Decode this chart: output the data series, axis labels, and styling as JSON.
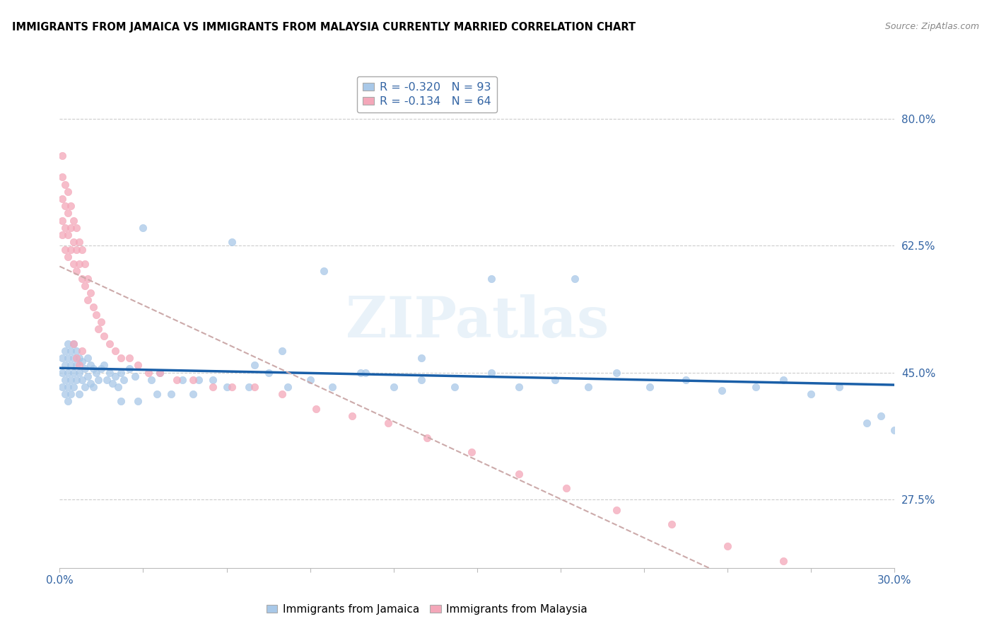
{
  "title": "IMMIGRANTS FROM JAMAICA VS IMMIGRANTS FROM MALAYSIA CURRENTLY MARRIED CORRELATION CHART",
  "source": "Source: ZipAtlas.com",
  "ylabel_ticks": [
    0.275,
    0.45,
    0.625,
    0.8
  ],
  "ylabel_labels": [
    "27.5%",
    "45.0%",
    "62.5%",
    "80.0%"
  ],
  "xmin": 0.0,
  "xmax": 0.3,
  "ymin": 0.18,
  "ymax": 0.86,
  "jamaica_color": "#a8c8e8",
  "malaysia_color": "#f4a7b9",
  "jamaica_line_color": "#1a5fa8",
  "malaysia_line_color": "#e06080",
  "malaysia_dash_color": "#d0a0b0",
  "jamaica_R": -0.32,
  "jamaica_N": 93,
  "malaysia_R": -0.134,
  "malaysia_N": 64,
  "watermark": "ZIPatlas",
  "legend_label_1": "Immigrants from Jamaica",
  "legend_label_2": "Immigrants from Malaysia",
  "jamaica_scatter_x": [
    0.001,
    0.001,
    0.001,
    0.002,
    0.002,
    0.002,
    0.002,
    0.003,
    0.003,
    0.003,
    0.003,
    0.003,
    0.004,
    0.004,
    0.004,
    0.004,
    0.005,
    0.005,
    0.005,
    0.005,
    0.006,
    0.006,
    0.006,
    0.007,
    0.007,
    0.007,
    0.008,
    0.008,
    0.009,
    0.009,
    0.01,
    0.01,
    0.011,
    0.011,
    0.012,
    0.012,
    0.013,
    0.014,
    0.015,
    0.016,
    0.017,
    0.018,
    0.019,
    0.02,
    0.021,
    0.022,
    0.023,
    0.025,
    0.027,
    0.03,
    0.033,
    0.036,
    0.04,
    0.044,
    0.048,
    0.055,
    0.062,
    0.068,
    0.075,
    0.082,
    0.09,
    0.098,
    0.108,
    0.12,
    0.13,
    0.142,
    0.155,
    0.165,
    0.178,
    0.19,
    0.2,
    0.212,
    0.225,
    0.238,
    0.25,
    0.26,
    0.27,
    0.28,
    0.185,
    0.155,
    0.095,
    0.11,
    0.13,
    0.05,
    0.06,
    0.07,
    0.08,
    0.035,
    0.028,
    0.022,
    0.29,
    0.295,
    0.3
  ],
  "jamaica_scatter_y": [
    0.47,
    0.45,
    0.43,
    0.48,
    0.46,
    0.44,
    0.42,
    0.49,
    0.47,
    0.45,
    0.43,
    0.41,
    0.48,
    0.46,
    0.44,
    0.42,
    0.47,
    0.45,
    0.43,
    0.49,
    0.46,
    0.44,
    0.48,
    0.47,
    0.45,
    0.42,
    0.465,
    0.44,
    0.455,
    0.43,
    0.47,
    0.445,
    0.46,
    0.435,
    0.455,
    0.43,
    0.45,
    0.44,
    0.455,
    0.46,
    0.44,
    0.45,
    0.435,
    0.445,
    0.43,
    0.45,
    0.44,
    0.455,
    0.445,
    0.65,
    0.44,
    0.45,
    0.42,
    0.44,
    0.42,
    0.44,
    0.63,
    0.43,
    0.45,
    0.43,
    0.44,
    0.43,
    0.45,
    0.43,
    0.44,
    0.43,
    0.45,
    0.43,
    0.44,
    0.43,
    0.45,
    0.43,
    0.44,
    0.425,
    0.43,
    0.44,
    0.42,
    0.43,
    0.58,
    0.58,
    0.59,
    0.45,
    0.47,
    0.44,
    0.43,
    0.46,
    0.48,
    0.42,
    0.41,
    0.41,
    0.38,
    0.39,
    0.37
  ],
  "malaysia_scatter_x": [
    0.001,
    0.001,
    0.001,
    0.001,
    0.001,
    0.002,
    0.002,
    0.002,
    0.002,
    0.003,
    0.003,
    0.003,
    0.003,
    0.004,
    0.004,
    0.004,
    0.005,
    0.005,
    0.005,
    0.006,
    0.006,
    0.006,
    0.007,
    0.007,
    0.008,
    0.008,
    0.009,
    0.009,
    0.01,
    0.01,
    0.011,
    0.012,
    0.013,
    0.014,
    0.015,
    0.016,
    0.018,
    0.02,
    0.022,
    0.025,
    0.028,
    0.032,
    0.036,
    0.042,
    0.048,
    0.055,
    0.062,
    0.07,
    0.08,
    0.092,
    0.105,
    0.118,
    0.132,
    0.148,
    0.165,
    0.182,
    0.2,
    0.22,
    0.24,
    0.26,
    0.008,
    0.005,
    0.006,
    0.007
  ],
  "malaysia_scatter_y": [
    0.75,
    0.72,
    0.69,
    0.66,
    0.64,
    0.71,
    0.68,
    0.65,
    0.62,
    0.7,
    0.67,
    0.64,
    0.61,
    0.68,
    0.65,
    0.62,
    0.66,
    0.63,
    0.6,
    0.65,
    0.62,
    0.59,
    0.63,
    0.6,
    0.62,
    0.58,
    0.6,
    0.57,
    0.58,
    0.55,
    0.56,
    0.54,
    0.53,
    0.51,
    0.52,
    0.5,
    0.49,
    0.48,
    0.47,
    0.47,
    0.46,
    0.45,
    0.45,
    0.44,
    0.44,
    0.43,
    0.43,
    0.43,
    0.42,
    0.4,
    0.39,
    0.38,
    0.36,
    0.34,
    0.31,
    0.29,
    0.26,
    0.24,
    0.21,
    0.19,
    0.48,
    0.49,
    0.47,
    0.46
  ]
}
